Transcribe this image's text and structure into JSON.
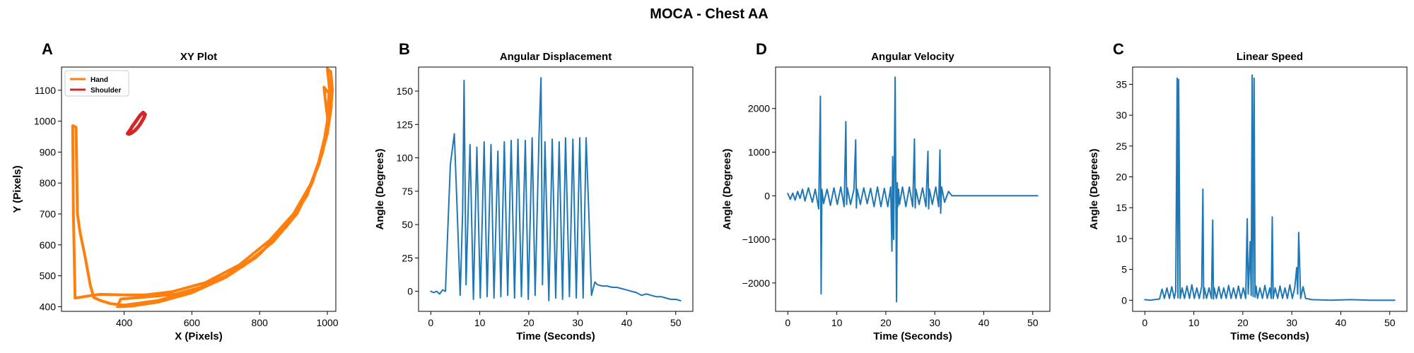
{
  "suptitle": "MOCA - Chest AA",
  "colors": {
    "blue": "#1f77b4",
    "orange": "#ff7f0e",
    "red": "#d62728"
  },
  "chart_data": [
    {
      "panel_label": "A",
      "type": "line",
      "title": "XY Plot",
      "xlabel": "X (Pixels)",
      "ylabel": "Y (Pixels)",
      "xlim": [
        215,
        1025
      ],
      "ylim": [
        385,
        1175
      ],
      "xticks": [
        400,
        600,
        800,
        1000
      ],
      "yticks": [
        400,
        500,
        600,
        700,
        800,
        900,
        1000,
        1100
      ],
      "legend_position": "upper-left",
      "series": [
        {
          "name": "Hand",
          "color": "#ff7f0e",
          "points": [
            [
              250,
              985
            ],
            [
              258,
              980
            ],
            [
              262,
              700
            ],
            [
              270,
              640
            ],
            [
              285,
              560
            ],
            [
              300,
              470
            ],
            [
              310,
              430
            ],
            [
              330,
              420
            ],
            [
              360,
              410
            ],
            [
              400,
              405
            ],
            [
              500,
              420
            ],
            [
              600,
              450
            ],
            [
              700,
              500
            ],
            [
              800,
              570
            ],
            [
              880,
              660
            ],
            [
              940,
              760
            ],
            [
              975,
              870
            ],
            [
              995,
              960
            ],
            [
              1010,
              1040
            ],
            [
              1015,
              1100
            ],
            [
              1010,
              1160
            ],
            [
              1000,
              1170
            ],
            [
              1005,
              1120
            ],
            [
              1012,
              1050
            ],
            [
              1000,
              960
            ],
            [
              975,
              860
            ],
            [
              935,
              755
            ],
            [
              870,
              650
            ],
            [
              790,
              560
            ],
            [
              700,
              495
            ],
            [
              600,
              445
            ],
            [
              500,
              415
            ],
            [
              420,
              402
            ],
            [
              380,
              400
            ],
            [
              390,
              425
            ],
            [
              450,
              430
            ],
            [
              550,
              440
            ],
            [
              650,
              470
            ],
            [
              750,
              530
            ],
            [
              840,
              610
            ],
            [
              910,
              700
            ],
            [
              955,
              800
            ],
            [
              985,
              900
            ],
            [
              1000,
              1000
            ],
            [
              1005,
              1090
            ],
            [
              990,
              1110
            ],
            [
              995,
              1060
            ],
            [
              1003,
              990
            ],
            [
              985,
              895
            ],
            [
              950,
              795
            ],
            [
              900,
              700
            ],
            [
              830,
              615
            ],
            [
              740,
              535
            ],
            [
              640,
              478
            ],
            [
              540,
              448
            ],
            [
              460,
              438
            ],
            [
              400,
              438
            ],
            [
              330,
              440
            ],
            [
              300,
              436
            ],
            [
              280,
              432
            ],
            [
              255,
              428
            ],
            [
              250,
              700
            ],
            [
              248,
              985
            ]
          ]
        },
        {
          "name": "Shoulder",
          "color": "#d62728",
          "points": [
            [
              410,
              960
            ],
            [
              418,
              972
            ],
            [
              425,
              985
            ],
            [
              432,
              995
            ],
            [
              440,
              1008
            ],
            [
              448,
              1020
            ],
            [
              456,
              1028
            ],
            [
              462,
              1022
            ],
            [
              458,
              1010
            ],
            [
              450,
              995
            ],
            [
              442,
              982
            ],
            [
              432,
              970
            ],
            [
              422,
              962
            ],
            [
              414,
              958
            ]
          ]
        }
      ]
    },
    {
      "panel_label": "B",
      "type": "line",
      "title": "Angular Displacement",
      "xlabel": "Time (Seconds)",
      "ylabel": "Angle (Degrees)",
      "xlim": [
        -2.5,
        53.5
      ],
      "ylim": [
        -15,
        168
      ],
      "xticks": [
        0,
        10,
        20,
        30,
        40,
        50
      ],
      "yticks": [
        0,
        25,
        50,
        75,
        100,
        125,
        150
      ],
      "series": [
        {
          "color": "#1f77b4",
          "x": [
            0,
            0.6,
            1.2,
            1.8,
            2.4,
            3.0,
            3.4,
            4.0,
            4.8,
            5.3,
            6.0,
            6.5,
            6.8,
            7.2,
            8.0,
            8.7,
            9.4,
            10.1,
            10.9,
            11.5,
            12.3,
            12.9,
            13.7,
            14.3,
            15.0,
            15.7,
            16.4,
            17.1,
            17.8,
            18.5,
            19.3,
            19.9,
            20.7,
            21.3,
            22.1,
            22.5,
            22.8,
            23.3,
            24.1,
            24.8,
            25.5,
            26.2,
            26.9,
            27.5,
            28.3,
            29.0,
            29.7,
            30.4,
            31.1,
            31.7,
            32.3,
            32.8,
            33.5,
            34,
            35,
            36,
            37,
            38,
            39,
            40,
            41,
            42,
            43,
            44,
            45,
            46,
            47,
            48,
            49,
            50,
            51
          ],
          "values": [
            0,
            -1,
            0,
            -2,
            1,
            0,
            40,
            95,
            118,
            70,
            -3,
            60,
            158,
            5,
            110,
            -6,
            108,
            -5,
            112,
            -4,
            110,
            -5,
            105,
            -4,
            112,
            -3,
            113,
            -5,
            114,
            -4,
            113,
            -6,
            115,
            -3,
            116,
            160,
            5,
            112,
            -7,
            114,
            -5,
            112,
            -6,
            115,
            -4,
            114,
            -5,
            115,
            -5,
            115,
            55,
            -3,
            7,
            5,
            4,
            4,
            3,
            3,
            2,
            1,
            0,
            -1,
            -3,
            -2,
            -3,
            -4,
            -4,
            -5,
            -6,
            -6,
            -7
          ]
        }
      ]
    },
    {
      "panel_label": "D",
      "type": "line",
      "title": "Angular Velocity",
      "xlabel": "Time (Seconds)",
      "ylabel": "Angle (Degrees)",
      "xlim": [
        -2.5,
        53.5
      ],
      "ylim": [
        -2650,
        2950
      ],
      "xticks": [
        0,
        10,
        20,
        30,
        40,
        50
      ],
      "yticks": [
        -2000,
        -1000,
        0,
        1000,
        2000
      ],
      "series": [
        {
          "color": "#1f77b4",
          "x": [
            0,
            0.5,
            1.0,
            1.5,
            2.0,
            2.5,
            3.0,
            3.5,
            4.2,
            5.0,
            5.6,
            6.3,
            6.65,
            6.8,
            6.95,
            7.3,
            8.0,
            8.7,
            9.4,
            10.1,
            10.8,
            11.5,
            11.85,
            12.0,
            12.15,
            12.8,
            13.5,
            13.85,
            14.0,
            14.15,
            14.8,
            15.5,
            16.2,
            16.9,
            17.6,
            18.3,
            19.0,
            19.7,
            20.4,
            21.0,
            21.25,
            21.4,
            21.6,
            21.9,
            22.2,
            22.35,
            22.45,
            22.6,
            22.8,
            23.4,
            24.1,
            24.8,
            25.5,
            25.85,
            26.0,
            26.15,
            26.8,
            27.5,
            28.2,
            28.6,
            28.75,
            28.9,
            29.5,
            30.2,
            30.8,
            31.05,
            31.2,
            31.4,
            32.0,
            32.8,
            33.5,
            34,
            38,
            42,
            46,
            51
          ],
          "values": [
            50,
            -80,
            60,
            -100,
            100,
            -60,
            150,
            -120,
            180,
            -150,
            150,
            -300,
            2280,
            -2250,
            150,
            -180,
            150,
            -220,
            180,
            -200,
            200,
            -250,
            1700,
            -200,
            180,
            -200,
            150,
            1280,
            -280,
            150,
            -200,
            180,
            -180,
            170,
            -250,
            200,
            -250,
            170,
            -250,
            200,
            -1270,
            900,
            -1000,
            2720,
            -2430,
            300,
            -250,
            150,
            -200,
            200,
            -250,
            200,
            -250,
            1300,
            -280,
            150,
            -200,
            180,
            -250,
            1020,
            -300,
            150,
            -200,
            200,
            -250,
            1050,
            -400,
            200,
            -150,
            100,
            0,
            0,
            0,
            0,
            0,
            0
          ]
        }
      ]
    },
    {
      "panel_label": "C",
      "type": "line",
      "title": "Linear Speed",
      "xlabel": "Time (Seconds)",
      "ylabel": "Angle (Degrees)",
      "xlim": [
        -2.5,
        53.5
      ],
      "ylim": [
        -1.8,
        37.8
      ],
      "xticks": [
        0,
        10,
        20,
        30,
        40,
        50
      ],
      "yticks": [
        0,
        5,
        10,
        15,
        20,
        25,
        30,
        35
      ],
      "series": [
        {
          "color": "#1f77b4",
          "x": [
            0,
            1,
            2,
            3,
            3.5,
            4.0,
            4.5,
            5.0,
            5.5,
            6.0,
            6.3,
            6.6,
            6.75,
            6.9,
            7.2,
            7.6,
            8.1,
            8.6,
            9.1,
            9.6,
            10.1,
            10.6,
            11.1,
            11.6,
            11.85,
            12.0,
            12.15,
            12.6,
            13.1,
            13.6,
            13.85,
            14.0,
            14.15,
            14.6,
            15.1,
            15.6,
            16.1,
            16.6,
            17.1,
            17.6,
            18.1,
            18.6,
            19.1,
            19.6,
            20.1,
            20.6,
            20.9,
            21.1,
            21.3,
            21.5,
            21.7,
            21.9,
            22.1,
            22.3,
            22.5,
            22.7,
            23.0,
            23.5,
            24.0,
            24.5,
            25.0,
            25.5,
            25.8,
            26.0,
            26.2,
            26.6,
            27.1,
            27.6,
            28.1,
            28.6,
            29.1,
            29.6,
            30.1,
            30.6,
            31.0,
            31.2,
            31.4,
            31.8,
            32.3,
            32.8,
            33.5,
            34,
            38,
            42,
            46,
            51
          ],
          "values": [
            0.1,
            0,
            0.1,
            0.2,
            1.8,
            0.3,
            2.0,
            0.3,
            2.2,
            0.3,
            1.5,
            36,
            0.4,
            35.8,
            0.3,
            2,
            0.3,
            2.3,
            0.3,
            2.5,
            0.3,
            2.0,
            0.3,
            2.2,
            18,
            0.3,
            2.0,
            0.3,
            2.0,
            0.3,
            13,
            0.2,
            2.0,
            0.3,
            2.2,
            0.3,
            2.0,
            0.3,
            2.4,
            0.3,
            2.0,
            0.3,
            2.3,
            0.3,
            2.0,
            0.3,
            13.2,
            1.0,
            5.0,
            9.5,
            0.8,
            36.5,
            0.6,
            36,
            0.5,
            2.3,
            0.3,
            2.0,
            0.3,
            2.4,
            0.3,
            2.0,
            0.3,
            13.5,
            0.3,
            2.0,
            0.3,
            2.3,
            0.3,
            2.0,
            0.3,
            2.5,
            0.3,
            2.0,
            5.3,
            1.0,
            11,
            0.3,
            2.2,
            0.3,
            0.2,
            0.1,
            0,
            0.1,
            0,
            0
          ]
        }
      ]
    }
  ]
}
